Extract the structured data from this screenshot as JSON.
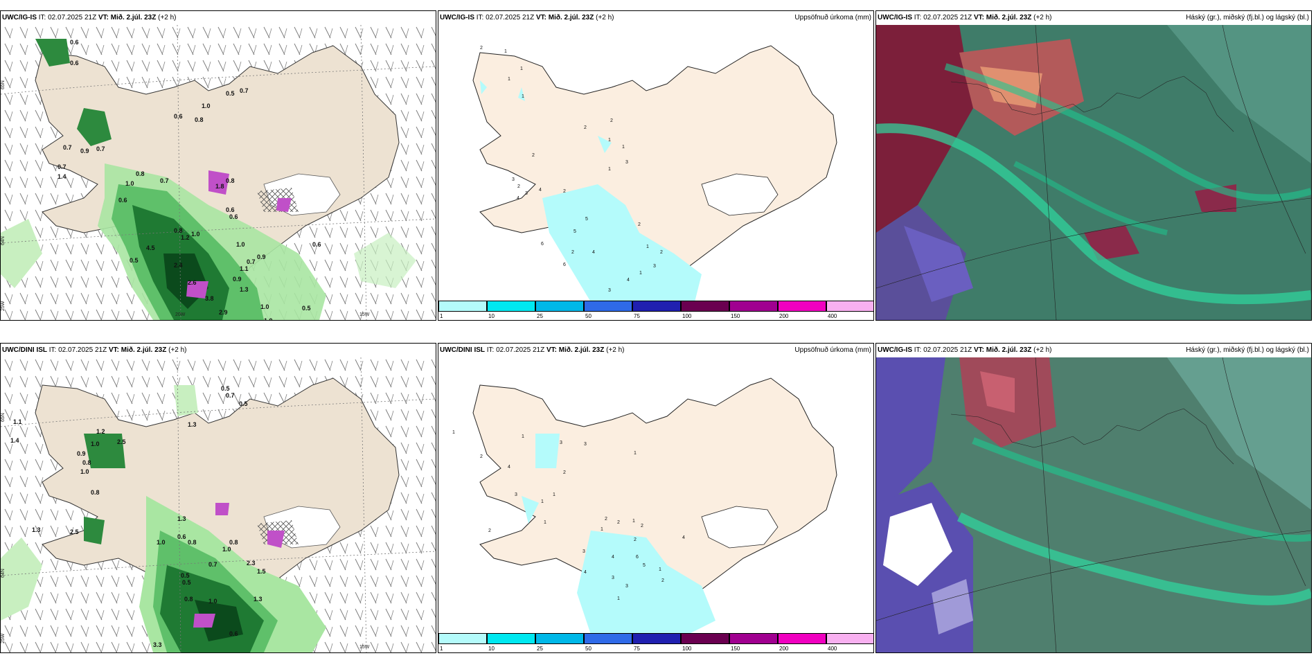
{
  "rows": [
    {
      "model": "UWC/IG-IS",
      "panels": [
        {
          "model_label": "UWC/IG-IS",
          "it": "IT: 02.07.2025 21Z",
          "vt_label": "VT:",
          "vt": "Mið. 2.júl. 23Z",
          "lead": "(+2 h)",
          "title": ""
        },
        {
          "model_label": "UWC/IG-IS",
          "it": "IT: 02.07.2025 21Z",
          "vt_label": "VT:",
          "vt": "Mið. 2.júl. 23Z",
          "lead": "(+2 h)",
          "title": "Uppsöfnuð úrkoma (mm)"
        },
        {
          "model_label": "UWC/IG-IS",
          "it": "IT: 02.07.2025 21Z",
          "vt_label": "VT:",
          "vt": "Mið. 2.júl. 23Z",
          "lead": "(+2 h)",
          "title": "Háský (gr.), miðský (fj.bl.) og lágský (bl.)"
        }
      ]
    },
    {
      "model": "UWC/DINI ISL",
      "panels": [
        {
          "model_label": "UWC/DINI ISL",
          "it": "IT: 02.07.2025 21Z",
          "vt_label": "VT:",
          "vt": "Mið. 2.júl. 23Z",
          "lead": "(+2 h)",
          "title": ""
        },
        {
          "model_label": "UWC/DINI ISL",
          "it": "IT: 02.07.2025 21Z",
          "vt_label": "VT:",
          "vt": "Mið. 2.júl. 23Z",
          "lead": "(+2 h)",
          "title": "Uppsöfnuð úrkoma (mm)"
        },
        {
          "model_label": "UWC/IG-IS",
          "it": "IT: 02.07.2025 21Z",
          "vt_label": "VT:",
          "vt": "Mið. 2.júl. 23Z",
          "lead": "(+2 h)",
          "title": "Háský (gr.), miðský (fj.bl.) og lágský (bl.)"
        }
      ]
    }
  ],
  "axis_labels": {
    "lat65": "65N",
    "lat64": "64N",
    "lon25": "25W",
    "lon20": "20W",
    "lon15": "15W"
  },
  "precip_legend": {
    "ticks": [
      "1",
      "10",
      "25",
      "50",
      "75",
      "100",
      "150",
      "200",
      "400"
    ],
    "colors": [
      "#b4fbfb",
      "#00e8f0",
      "#00b8e8",
      "#2f6ae8",
      "#2020b0",
      "#6a0050",
      "#a00090",
      "#f000c0",
      "#f8b0f0"
    ]
  },
  "row1_precip_labels": [
    "0.6",
    "0.6",
    "1.0",
    "0.5",
    "0.7",
    "0.6",
    "0.8",
    "0.7",
    "0.9",
    "0.7",
    "0.7",
    "1.4",
    "0.8",
    "1.0",
    "0.7",
    "0.6",
    "1.8",
    "0.8",
    "0.6",
    "0.6",
    "0.8",
    "1.0",
    "1.2",
    "0.5",
    "4.5",
    "2.4",
    "1.0",
    "0.7",
    "0.9",
    "1.1",
    "0.9",
    "2.6",
    "1.3",
    "3.8",
    "2.9",
    "1.0",
    "1.0",
    "0.5",
    "0.6"
  ],
  "row1_accum_labels": [
    "2",
    "1",
    "1",
    "1",
    "1",
    "2",
    "2",
    "1",
    "1",
    "1",
    "3",
    "2",
    "3",
    "4",
    "2",
    "4",
    "5",
    "6",
    "5",
    "4",
    "2",
    "1",
    "2",
    "3",
    "4",
    "3",
    "6",
    "2",
    "3",
    "2",
    "1"
  ],
  "row2_precip_labels": [
    "0.5",
    "0.7",
    "0.5",
    "1.1",
    "1.4",
    "1.2",
    "1.3",
    "1.0",
    "0.9",
    "2.5",
    "0.8",
    "1.0",
    "0.8",
    "1.3",
    "2.5",
    "1.3",
    "1.0",
    "0.6",
    "0.8",
    "0.8",
    "1.0",
    "0.5",
    "0.7",
    "2.3",
    "1.5",
    "1.3",
    "0.8",
    "1.0",
    "0.5",
    "0.6",
    "3.3"
  ],
  "row2_accum_labels": [
    "1",
    "2",
    "1",
    "3",
    "3",
    "1",
    "4",
    "2",
    "3",
    "1",
    "1",
    "1",
    "2",
    "2",
    "2",
    "1",
    "1",
    "2",
    "2",
    "4",
    "3",
    "4",
    "6",
    "5",
    "4",
    "3",
    "3",
    "1",
    "2",
    "1"
  ]
}
